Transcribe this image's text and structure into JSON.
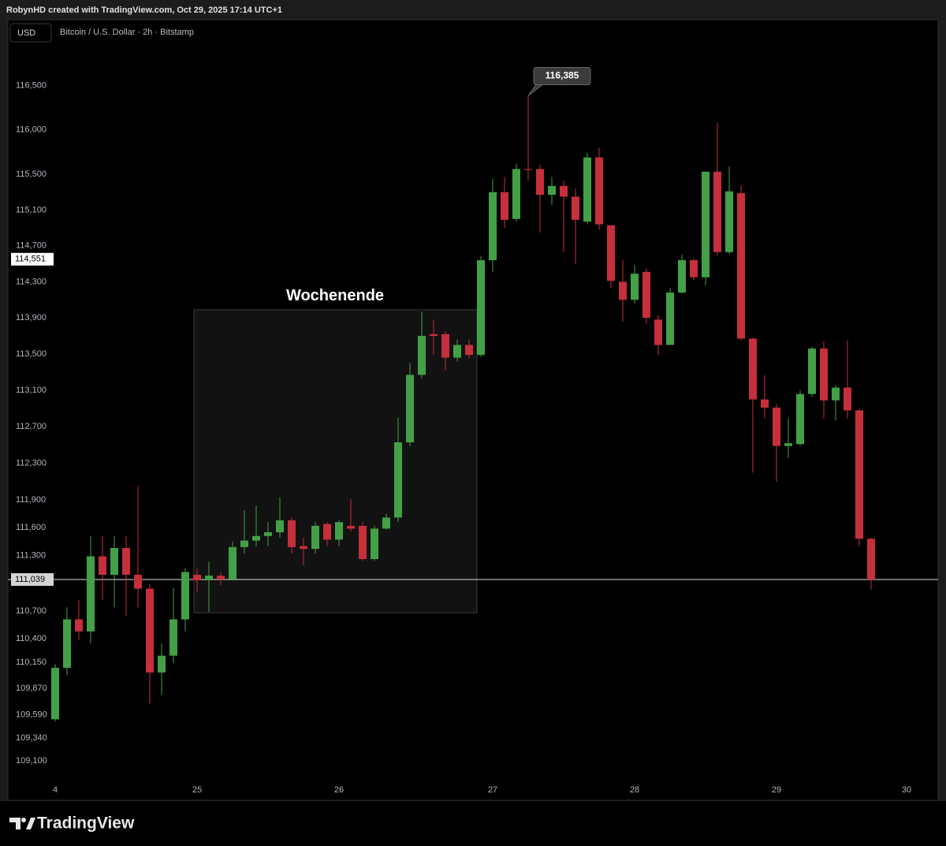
{
  "chart_data": {
    "type": "candlestick",
    "attribution": "RobynHD created with TradingView.com, Oct 29, 2025 17:14 UTC+1",
    "currency": "USD",
    "title": "Bitcoin / U.S. Dollar · 2h · Bitstamp",
    "brand": "TradingView",
    "log_scale": true,
    "grid": false,
    "up_color": "#43a047",
    "down_color": "#c62f3c",
    "categories": [
      "4",
      null,
      null,
      null,
      null,
      null,
      null,
      null,
      null,
      null,
      null,
      null,
      "25",
      null,
      null,
      null,
      null,
      null,
      null,
      null,
      null,
      null,
      null,
      null,
      "26",
      null,
      null,
      null,
      null,
      null,
      null,
      null,
      null,
      null,
      null,
      null,
      null,
      "27",
      null,
      null,
      null,
      null,
      null,
      null,
      null,
      null,
      null,
      null,
      null,
      "28",
      null,
      null,
      null,
      null,
      null,
      null,
      null,
      null,
      null,
      null,
      null,
      "29",
      null,
      null,
      null,
      null,
      null,
      null,
      null,
      null,
      null,
      null,
      "30"
    ],
    "open": [
      109540,
      110090,
      110610,
      110480,
      111290,
      111090,
      111380,
      111090,
      110940,
      110040,
      110220,
      110610,
      111090,
      111030,
      111080,
      111040,
      111390,
      111460,
      111510,
      111550,
      111680,
      111400,
      111370,
      111640,
      111470,
      111620,
      111620,
      111260,
      111590,
      111710,
      112530,
      113270,
      113720,
      113720,
      113460,
      113600,
      113490,
      114540,
      115300,
      115000,
      115560,
      115560,
      115270,
      115370,
      115250,
      114970,
      115690,
      114930,
      114300,
      114100,
      114410,
      113880,
      113600,
      114180,
      114540,
      114350,
      115530,
      114630,
      115290,
      113670,
      113000,
      112910,
      112490,
      112510,
      113060,
      113560,
      112990,
      113130,
      112880,
      111480,
      null,
      null,
      null
    ],
    "high": [
      110130,
      110740,
      110820,
      111510,
      111510,
      111510,
      111510,
      112060,
      110990,
      110350,
      110950,
      111160,
      111160,
      111230,
      111120,
      111450,
      111790,
      111840,
      111660,
      111930,
      111710,
      111490,
      111660,
      111660,
      111680,
      111910,
      111660,
      111620,
      111750,
      112800,
      113400,
      113970,
      113880,
      113750,
      113660,
      113660,
      114590,
      115450,
      115470,
      115620,
      116385,
      115610,
      115470,
      115430,
      115340,
      115740,
      115800,
      114930,
      114540,
      114490,
      114450,
      113930,
      114230,
      114600,
      114560,
      115530,
      116080,
      115590,
      115380,
      113680,
      113270,
      112950,
      112790,
      113100,
      113580,
      113640,
      113160,
      113650,
      112900,
      111490,
      null,
      null,
      null
    ],
    "low": [
      109520,
      110010,
      110390,
      110350,
      110820,
      110740,
      110650,
      110740,
      109710,
      109800,
      110140,
      110480,
      110910,
      110690,
      110980,
      111030,
      111320,
      111400,
      111400,
      111490,
      111320,
      111190,
      111320,
      111400,
      111400,
      111560,
      111240,
      111240,
      111580,
      111660,
      112490,
      113230,
      113490,
      113320,
      113420,
      113450,
      113470,
      114410,
      114900,
      114970,
      115430,
      114850,
      115160,
      114630,
      114500,
      114940,
      114880,
      114230,
      113860,
      114060,
      113840,
      113490,
      113600,
      114170,
      114320,
      114260,
      114590,
      114610,
      113650,
      112200,
      112790,
      112100,
      112360,
      112490,
      113030,
      112790,
      112770,
      112790,
      111400,
      110930,
      null,
      null,
      null
    ],
    "close": [
      110090,
      110610,
      110480,
      111290,
      111090,
      111380,
      111090,
      110940,
      110040,
      110220,
      110610,
      111120,
      111030,
      111080,
      111040,
      111390,
      111460,
      111510,
      111550,
      111680,
      111390,
      111370,
      111620,
      111470,
      111660,
      111590,
      111260,
      111590,
      111710,
      112530,
      113270,
      113700,
      113700,
      113460,
      113600,
      113490,
      114540,
      115300,
      114990,
      115560,
      115550,
      115270,
      115370,
      115250,
      114990,
      115690,
      114940,
      114310,
      114100,
      114390,
      113900,
      113600,
      114180,
      114540,
      114350,
      115530,
      114630,
      115310,
      113670,
      113000,
      112910,
      112490,
      112520,
      113060,
      113560,
      112990,
      113130,
      112880,
      111480,
      111039,
      null,
      null,
      null
    ],
    "ylim": [
      108890,
      116980
    ],
    "yticks": [
      {
        "value": 116500,
        "label": "116,500"
      },
      {
        "value": 116000,
        "label": "116,000"
      },
      {
        "value": 115500,
        "label": "115,500"
      },
      {
        "value": 115100,
        "label": "115,100"
      },
      {
        "value": 114700,
        "label": "114,700"
      },
      {
        "value": 114300,
        "label": "114,300"
      },
      {
        "value": 113900,
        "label": "113,900"
      },
      {
        "value": 113500,
        "label": "113,500"
      },
      {
        "value": 113100,
        "label": "113,100"
      },
      {
        "value": 112700,
        "label": "112,700"
      },
      {
        "value": 112300,
        "label": "112,300"
      },
      {
        "value": 111900,
        "label": "111,900"
      },
      {
        "value": 111600,
        "label": "111,600"
      },
      {
        "value": 111300,
        "label": "111,300"
      },
      {
        "value": 110700,
        "label": "110,700"
      },
      {
        "value": 110400,
        "label": "110,400"
      },
      {
        "value": 110150,
        "label": "110,150"
      },
      {
        "value": 109870,
        "label": "109,870"
      },
      {
        "value": 109590,
        "label": "109,590"
      },
      {
        "value": 109340,
        "label": "109,340"
      },
      {
        "value": 109100,
        "label": "109,100"
      }
    ],
    "price_label": {
      "value": 114551,
      "label": "114,551"
    },
    "last_price": {
      "value": 111039,
      "label": "111,039"
    },
    "high_annotation": {
      "value": 116385,
      "label": "116,385"
    },
    "highlight": {
      "label": "Wochenende",
      "ylim": [
        110680,
        113990
      ]
    }
  }
}
